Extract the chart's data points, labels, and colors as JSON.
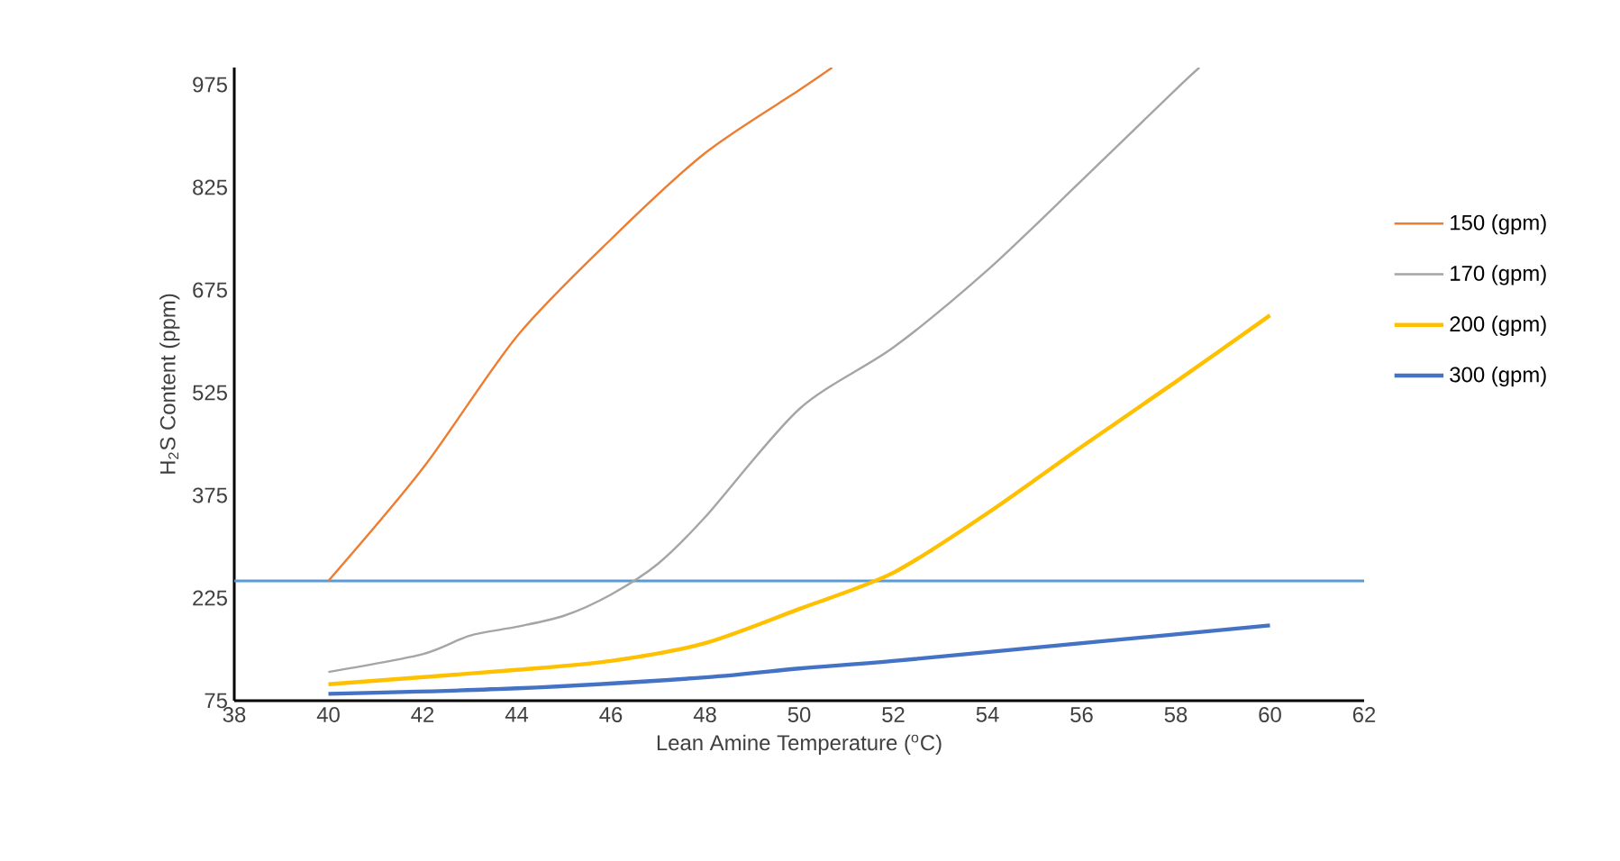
{
  "chart_data": {
    "type": "line",
    "xlabel": "Lean Amine Temperature ($^{o}$C)",
    "ylabel": "H$_{2}$S Content (ppm)",
    "xlim": [
      38,
      62
    ],
    "xticks": [
      38,
      40,
      42,
      44,
      46,
      48,
      50,
      52,
      54,
      56,
      58,
      60,
      62
    ],
    "ylim": [
      75,
      1000
    ],
    "yticks": [
      75,
      225,
      375,
      525,
      675,
      825,
      975
    ],
    "grid": false,
    "legend": "right",
    "marker": "none",
    "line_style": "solid",
    "ref_lines": [
      {
        "axis": "y",
        "value": 250,
        "color": "#5b9bd5"
      }
    ],
    "series": [
      {
        "name": "150 (gpm)",
        "color": "#ed7d31",
        "x": [
          40,
          42,
          44,
          46,
          48,
          50,
          50.7
        ],
        "values": [
          250,
          414,
          607,
          749,
          875,
          967,
          1000
        ]
      },
      {
        "name": "170 (gpm)",
        "color": "#a5a5a5",
        "x": [
          40,
          42,
          43,
          44,
          45,
          46,
          47,
          48,
          50,
          52,
          54,
          56,
          58,
          58.5
        ],
        "values": [
          117,
          143,
          170,
          183,
          199,
          230,
          275,
          343,
          501,
          591,
          704,
          835,
          968,
          1000
        ]
      },
      {
        "name": "200 (gpm)",
        "color": "#ffc000",
        "x": [
          40,
          44,
          46,
          48,
          50,
          52,
          54,
          56,
          58,
          60
        ],
        "values": [
          99,
          120,
          133,
          159,
          209,
          262,
          349,
          446,
          541,
          638
        ]
      },
      {
        "name": "300 (gpm)",
        "color": "#4472c4",
        "x": [
          40,
          44,
          48,
          50,
          52,
          56,
          60
        ],
        "values": [
          85,
          93,
          109,
          122,
          133,
          159,
          185
        ]
      }
    ]
  }
}
